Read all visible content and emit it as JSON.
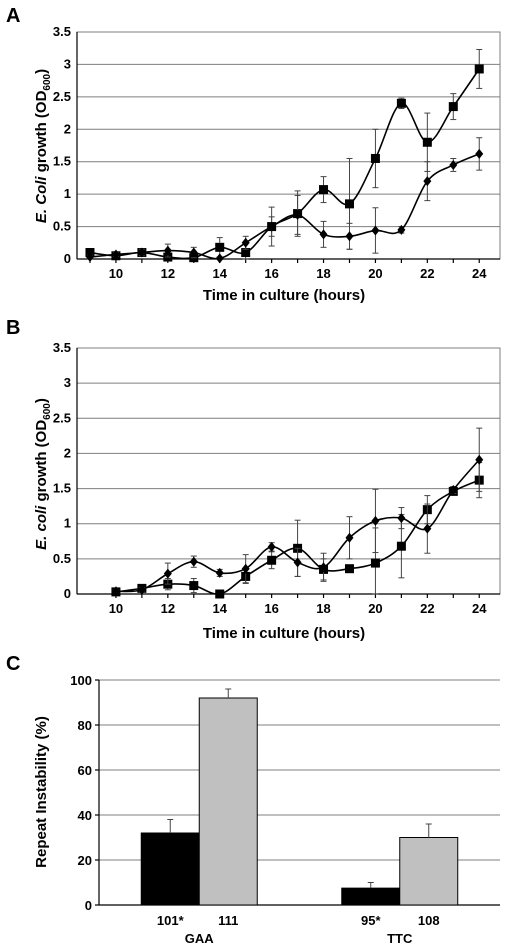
{
  "chart_data": [
    {
      "panel": "A",
      "type": "line",
      "ylabel_prefix": "E. Coli",
      "ylabel_main": " growth (OD",
      "ylabel_sub": "600",
      "ylabel_suffix": ")",
      "xlabel": "Time in culture (hours)",
      "x": [
        9,
        10,
        11,
        12,
        13,
        14,
        15,
        16,
        17,
        18,
        19,
        20,
        21,
        22,
        23,
        24
      ],
      "xticks": [
        10,
        12,
        14,
        16,
        18,
        20,
        22,
        24
      ],
      "xlim": [
        8.5,
        24.8
      ],
      "ylim": [
        0,
        3.5
      ],
      "yticks": [
        0,
        0.5,
        1,
        1.5,
        2,
        2.5,
        3,
        3.5
      ],
      "ytick_labels": [
        "0",
        "0.5",
        "1",
        "1.5",
        "2",
        "2.5",
        "3",
        "3.5"
      ],
      "grid": true,
      "series": [
        {
          "marker": "square",
          "values": [
            0.1,
            0.05,
            0.1,
            0.03,
            0.02,
            0.18,
            0.1,
            0.5,
            0.7,
            1.07,
            0.85,
            1.55,
            2.4,
            1.8,
            2.35,
            2.93
          ],
          "errors": [
            0.05,
            0.04,
            0.05,
            0.05,
            0.06,
            0.15,
            0.15,
            0.3,
            0.35,
            0.2,
            0.7,
            0.45,
            0.08,
            0.45,
            0.2,
            0.3
          ]
        },
        {
          "marker": "diamond",
          "values": [
            0.03,
            0.07,
            0.1,
            0.13,
            0.1,
            0.01,
            0.25,
            0.5,
            0.68,
            0.38,
            0.35,
            0.44,
            0.45,
            1.2,
            1.45,
            1.62
          ],
          "errors": [
            0.03,
            0.03,
            0.05,
            0.1,
            0.08,
            0.02,
            0.1,
            0.15,
            0.3,
            0.2,
            0.2,
            0.35,
            0.05,
            0.3,
            0.1,
            0.25
          ]
        }
      ]
    },
    {
      "panel": "B",
      "type": "line",
      "ylabel_prefix": "E. coli",
      "ylabel_main": " growth (OD",
      "ylabel_sub": "600",
      "ylabel_suffix": ")",
      "xlabel": "Time in culture (hours)",
      "x": [
        10,
        11,
        12,
        13,
        14,
        15,
        16,
        17,
        18,
        19,
        20,
        21,
        22,
        23,
        24
      ],
      "xticks": [
        10,
        12,
        14,
        16,
        18,
        20,
        22,
        24
      ],
      "xlim": [
        8.5,
        24.8
      ],
      "ylim": [
        0,
        3.5
      ],
      "yticks": [
        0,
        0.5,
        1,
        1.5,
        2,
        2.5,
        3,
        3.5
      ],
      "ytick_labels": [
        "0",
        "0.5",
        "1",
        "1.5",
        "2",
        "2.5",
        "3",
        "3.5"
      ],
      "grid": true,
      "series": [
        {
          "marker": "square",
          "values": [
            0.03,
            0.08,
            0.14,
            0.12,
            0.0,
            0.25,
            0.48,
            0.65,
            0.35,
            0.36,
            0.44,
            0.68,
            1.2,
            1.46,
            1.62
          ],
          "errors": [
            0.02,
            0.03,
            0.08,
            0.1,
            0.02,
            0.1,
            0.12,
            0.4,
            0.15,
            0.05,
            0.5,
            0.45,
            0.2,
            0.05,
            0.25
          ]
        },
        {
          "marker": "diamond",
          "values": [
            0.04,
            0.06,
            0.29,
            0.46,
            0.3,
            0.36,
            0.67,
            0.45,
            0.38,
            0.8,
            1.04,
            1.08,
            0.93,
            1.48,
            1.91
          ],
          "errors": [
            0.02,
            0.03,
            0.15,
            0.08,
            0.05,
            0.2,
            0.06,
            0.2,
            0.2,
            0.3,
            0.45,
            0.15,
            0.35,
            0.05,
            0.45
          ]
        }
      ]
    },
    {
      "panel": "C",
      "type": "bar",
      "ylabel": "Repeat Instability (%)",
      "ylim": [
        0,
        100
      ],
      "yticks": [
        0,
        20,
        40,
        60,
        80,
        100
      ],
      "ytick_labels": [
        "0",
        "20",
        "40",
        "60",
        "80",
        "100"
      ],
      "grid": true,
      "groups": [
        {
          "label": "GAA",
          "bars": [
            {
              "label": "101*",
              "value": 32,
              "error": 6,
              "color": "#000000"
            },
            {
              "label": "111",
              "value": 92,
              "error": 4,
              "color": "#c0c0c0"
            }
          ]
        },
        {
          "label": "TTC",
          "bars": [
            {
              "label": "95*",
              "value": 7.5,
              "error": 2.5,
              "color": "#000000"
            },
            {
              "label": "108",
              "value": 30,
              "error": 6,
              "color": "#c0c0c0"
            }
          ]
        }
      ]
    }
  ]
}
